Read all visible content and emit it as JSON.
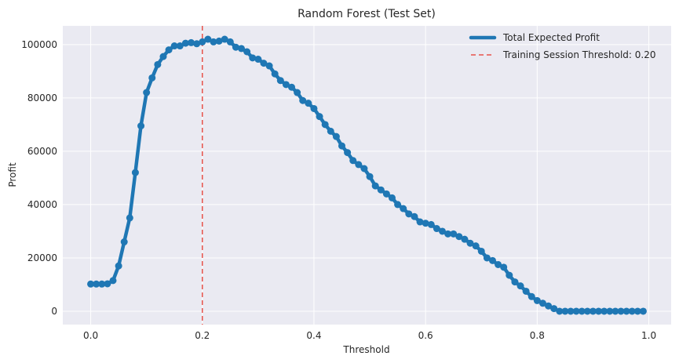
{
  "chart_data": {
    "type": "line",
    "title": "Random Forest (Test Set)",
    "xlabel": "Threshold",
    "ylabel": "Profit",
    "xlim": [
      -0.05,
      1.04
    ],
    "ylim": [
      -5000,
      107000
    ],
    "xticks": [
      0.0,
      0.2,
      0.4,
      0.6,
      0.8,
      1.0
    ],
    "xtick_labels": [
      "0.0",
      "0.2",
      "0.4",
      "0.6",
      "0.8",
      "1.0"
    ],
    "yticks": [
      0,
      20000,
      40000,
      60000,
      80000,
      100000
    ],
    "ytick_labels": [
      "0",
      "20000",
      "40000",
      "60000",
      "80000",
      "100000"
    ],
    "grid": true,
    "legend_position": "top-right",
    "colors": {
      "series": "#1f77b4",
      "threshold": "#e8534a",
      "plot_bg": "#eaeaf2",
      "grid": "#ffffff"
    },
    "series": [
      {
        "name": "Total Expected Profit",
        "x": [
          0.0,
          0.01,
          0.02,
          0.03,
          0.04,
          0.05,
          0.06,
          0.07,
          0.08,
          0.09,
          0.1,
          0.11,
          0.12,
          0.13,
          0.14,
          0.15,
          0.16,
          0.17,
          0.18,
          0.19,
          0.2,
          0.21,
          0.22,
          0.23,
          0.24,
          0.25,
          0.26,
          0.27,
          0.28,
          0.29,
          0.3,
          0.31,
          0.32,
          0.33,
          0.34,
          0.35,
          0.36,
          0.37,
          0.38,
          0.39,
          0.4,
          0.41,
          0.42,
          0.43,
          0.44,
          0.45,
          0.46,
          0.47,
          0.48,
          0.49,
          0.5,
          0.51,
          0.52,
          0.53,
          0.54,
          0.55,
          0.56,
          0.57,
          0.58,
          0.59,
          0.6,
          0.61,
          0.62,
          0.63,
          0.64,
          0.65,
          0.66,
          0.67,
          0.68,
          0.69,
          0.7,
          0.71,
          0.72,
          0.73,
          0.74,
          0.75,
          0.76,
          0.77,
          0.78,
          0.79,
          0.8,
          0.81,
          0.82,
          0.83,
          0.84,
          0.85,
          0.86,
          0.87,
          0.88,
          0.89,
          0.9,
          0.91,
          0.92,
          0.93,
          0.94,
          0.95,
          0.96,
          0.97,
          0.98,
          0.99
        ],
        "y": [
          10200,
          10200,
          10200,
          10300,
          11500,
          17000,
          26000,
          35000,
          52000,
          69500,
          82000,
          87500,
          92500,
          95500,
          98000,
          99500,
          99500,
          100500,
          100700,
          100300,
          101000,
          102000,
          101000,
          101300,
          102000,
          101000,
          99000,
          98500,
          97300,
          95000,
          94500,
          93000,
          92000,
          89000,
          86500,
          85000,
          84000,
          82000,
          79000,
          78000,
          76000,
          73000,
          70000,
          67500,
          65500,
          62000,
          59500,
          56500,
          55000,
          53500,
          50500,
          47000,
          45500,
          44000,
          42500,
          40000,
          38500,
          36500,
          35500,
          33500,
          33000,
          32500,
          31000,
          30000,
          29000,
          29000,
          28000,
          27000,
          25500,
          24500,
          22500,
          20000,
          19000,
          17500,
          16500,
          13500,
          11000,
          9500,
          7500,
          5500,
          4000,
          3000,
          2000,
          1000,
          0,
          0,
          0,
          0,
          0,
          0,
          0,
          0,
          0,
          0,
          0,
          0,
          0,
          0,
          0,
          0
        ]
      }
    ],
    "threshold": {
      "label": "Training Session Threshold: 0.20",
      "value": 0.2
    }
  }
}
